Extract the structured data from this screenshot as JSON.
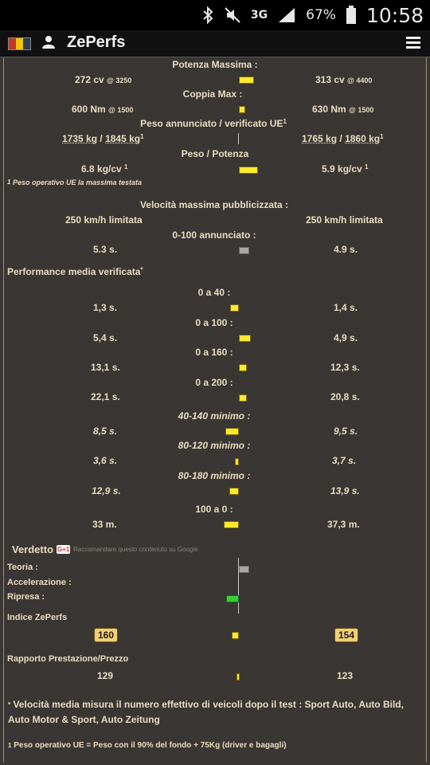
{
  "status_bar": {
    "network": "3G",
    "battery": "67%",
    "time": "10:58"
  },
  "app": {
    "title": "ZePerfs"
  },
  "specs": {
    "power": {
      "label": "Potenza Massima :",
      "left": "272 cv",
      "left_rpm": "@ 3250",
      "right": "313 cv",
      "right_rpm": "@ 4400"
    },
    "torque": {
      "label": "Coppia Max :",
      "left": "600 Nm",
      "left_rpm": "@ 1500",
      "right": "630 Nm",
      "right_rpm": "@ 1500"
    },
    "weight": {
      "label": "Peso annunciato / verificato UE",
      "label_sup": "1",
      "left_a": "1735 kg",
      "left_b": "1845 kg",
      "left_sup": "1",
      "right_a": "1765 kg",
      "right_b": "1860 kg",
      "right_sup": "1",
      "slash": "/"
    },
    "ratio": {
      "label": "Peso / Potenza",
      "left": "6.8 kg/cv",
      "left_sup": "1",
      "right": "5.9 kg/cv",
      "right_sup": "1"
    },
    "weight_note": {
      "sup": "1",
      "text": "Peso operativo UE la massima testata"
    },
    "vmax": {
      "label": "Velocità massima pubblicizzata :",
      "left": "250 km/h limitata",
      "right": "250 km/h limitata"
    },
    "accel_claimed": {
      "label": "0-100 annunciato :",
      "left": "5.3 s.",
      "right": "4.9 s."
    }
  },
  "performance": {
    "title": "Performance media verificata",
    "title_sup": "*",
    "rows": [
      {
        "label": "0 a 40 :",
        "left": "1,3 s.",
        "right": "1,4 s.",
        "italic": false
      },
      {
        "label": "0 a 100 :",
        "left": "5,4 s.",
        "right": "4,9 s.",
        "italic": false
      },
      {
        "label": "0 a 160 :",
        "left": "13,1 s.",
        "right": "12,3 s.",
        "italic": false
      },
      {
        "label": "0 a 200 :",
        "left": "22,1 s.",
        "right": "20,8 s.",
        "italic": false
      },
      {
        "label": "40-140 minimo :",
        "left": "8,5 s.",
        "right": "9,5 s.",
        "italic": true
      },
      {
        "label": "80-120 minimo :",
        "left": "3,6 s.",
        "right": "3,7 s.",
        "italic": true
      },
      {
        "label": "80-180 minimo :",
        "left": "12,9 s.",
        "right": "13,9 s.",
        "italic": true
      },
      {
        "label": "100 a 0 :",
        "left": "33 m.",
        "right": "37,3 m.",
        "italic": false
      }
    ]
  },
  "verdict": {
    "title": "Verdetto",
    "gplus": "G+1",
    "gplus_hint": "Raccomandare questo contenuto su Google",
    "theory": "Teoria :",
    "acceleration": "Accelerazione :",
    "pickup": "Ripresa :"
  },
  "index": {
    "title": "Indice ZePerfs",
    "left": "160",
    "right": "154"
  },
  "value": {
    "title": "Rapporto Prestazione/Prezzo",
    "left": "129",
    "right": "123"
  },
  "footnotes": {
    "star_sup": "*",
    "star_text": "Velocità media misura il numero effettivo di veicoli dopo il test : Sport Auto, Auto Bild, Auto Motor & Sport, Auto Zeitung",
    "one_sup": "1",
    "one_text": "Peso operativo UE = Peso con il 90% del fondo + 75Kg (driver e bagagli)"
  },
  "colors": {
    "bar_yellow": "#ffe92e",
    "bar_gray": "#a7a7a7",
    "bar_green": "#35d13b",
    "badge": "#f3cf73"
  }
}
